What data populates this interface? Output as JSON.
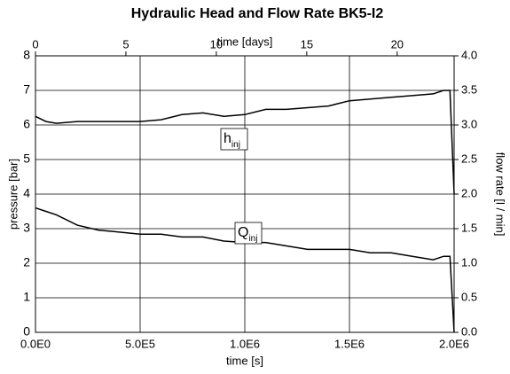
{
  "chart_data": {
    "type": "line",
    "title": "Hydraulic Head and Flow Rate BK5-I2",
    "xlabel": "time [s]",
    "x2label": "time [days]",
    "ylabel": "pressure [bar]",
    "y2label": "flow rate [l / min]",
    "x": [
      0,
      50000,
      100000,
      200000,
      300000,
      400000,
      500000,
      600000,
      700000,
      800000,
      900000,
      1000000,
      1100000,
      1200000,
      1300000,
      1400000,
      1500000,
      1600000,
      1700000,
      1800000,
      1900000,
      1950000,
      1980000,
      2000000
    ],
    "series": [
      {
        "name": "h",
        "subscript": "inj",
        "color": "#000000",
        "values": [
          6.25,
          6.1,
          6.05,
          6.1,
          6.1,
          6.1,
          6.1,
          6.15,
          6.3,
          6.35,
          6.25,
          6.3,
          6.45,
          6.45,
          6.5,
          6.55,
          6.7,
          6.75,
          6.8,
          6.85,
          6.9,
          7.0,
          7.0,
          4.0
        ]
      },
      {
        "name": "Q",
        "subscript": "inj",
        "color": "#000000",
        "axis": "y2",
        "values": [
          1.8,
          1.75,
          1.7,
          1.55,
          1.48,
          1.45,
          1.42,
          1.42,
          1.38,
          1.38,
          1.32,
          1.3,
          1.3,
          1.25,
          1.2,
          1.2,
          1.2,
          1.15,
          1.15,
          1.1,
          1.05,
          1.1,
          1.1,
          0.0
        ]
      }
    ],
    "xlim": [
      0,
      2000000
    ],
    "xticks": [
      {
        "value": 0,
        "label": "0.0E0"
      },
      {
        "value": 500000,
        "label": "5.0E5"
      },
      {
        "value": 1000000,
        "label": "1.0E6"
      },
      {
        "value": 1500000,
        "label": "1.5E6"
      },
      {
        "value": 2000000,
        "label": "2.0E6"
      }
    ],
    "x2lim": [
      0,
      23.148
    ],
    "x2ticks": [
      0,
      5,
      10,
      15,
      20
    ],
    "ylim": [
      0,
      8
    ],
    "yticks": [
      0,
      1,
      2,
      3,
      4,
      5,
      6,
      7,
      8
    ],
    "y2lim": [
      0,
      4
    ],
    "y2ticks": [
      {
        "value": 0,
        "label": "0.0"
      },
      {
        "value": 0.5,
        "label": "0.5"
      },
      {
        "value": 1,
        "label": "1.0"
      },
      {
        "value": 1.5,
        "label": "1.5"
      },
      {
        "value": 2,
        "label": "2.0"
      },
      {
        "value": 2.5,
        "label": "2.5"
      },
      {
        "value": 3,
        "label": "3.0"
      },
      {
        "value": 3.5,
        "label": "3.5"
      },
      {
        "value": 4,
        "label": "4.0"
      }
    ],
    "grid": true
  }
}
